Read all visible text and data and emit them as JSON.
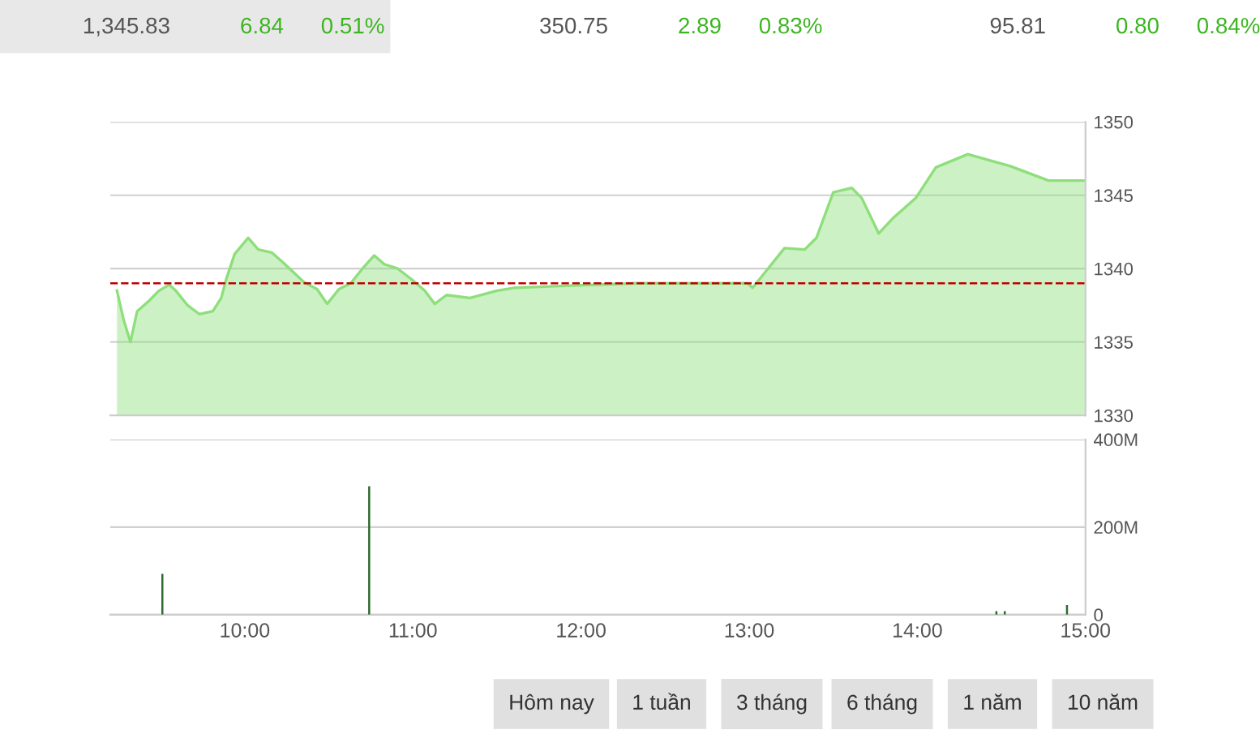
{
  "chart_data": [
    {
      "type": "area",
      "x": [
        9.24,
        9.28,
        9.32,
        9.36,
        9.43,
        9.49,
        9.55,
        9.59,
        9.66,
        9.73,
        9.81,
        9.86,
        9.89,
        9.94,
        10.02,
        10.08,
        10.16,
        10.23,
        10.35,
        10.43,
        10.49,
        10.56,
        10.63,
        10.7,
        10.77,
        10.83,
        10.91,
        11.0,
        11.07,
        11.13,
        11.2,
        11.34,
        11.5,
        11.61,
        11.84,
        12.32,
        12.99,
        13.02,
        13.07,
        13.21,
        13.33,
        13.4,
        13.5,
        13.61,
        13.67,
        13.77,
        13.86,
        13.99,
        14.11,
        14.3,
        14.55,
        14.78,
        15.0
      ],
      "series": [
        {
          "color": "#8edf7c",
          "values": [
            1338.5,
            1336.5,
            1335.0,
            1337.1,
            1337.8,
            1338.5,
            1338.9,
            1338.5,
            1337.5,
            1336.9,
            1337.1,
            1338.0,
            1339.3,
            1341.0,
            1342.1,
            1341.3,
            1341.1,
            1340.4,
            1339.1,
            1338.6,
            1337.6,
            1338.6,
            1339.0,
            1340.0,
            1340.9,
            1340.3,
            1340.0,
            1339.2,
            1338.5,
            1337.6,
            1338.2,
            1338.0,
            1338.5,
            1338.7,
            1338.8,
            1339.0,
            1339.0,
            1338.7,
            1339.4,
            1341.4,
            1341.3,
            1342.1,
            1345.2,
            1345.5,
            1344.8,
            1342.4,
            1343.5,
            1344.8,
            1346.9,
            1347.8,
            1347.0,
            1346.0,
            1346.0
          ]
        }
      ],
      "xlim": [
        9.2,
        15.0
      ],
      "ylim": [
        1330,
        1350
      ],
      "yticks": [
        1330,
        1335,
        1340,
        1345,
        1350
      ],
      "grid": "y",
      "tick_labels": "y",
      "ref_lines": [
        {
          "axis": "y",
          "value": 1339.0,
          "color": "#c00000",
          "line_style": "dashed"
        }
      ],
      "annotations": [
        "1,345.83",
        "6.84",
        "0.51%",
        "350.75",
        "2.89",
        "0.83%",
        "95.81",
        "0.80",
        "0.84%"
      ]
    },
    {
      "type": "bar",
      "x": [
        9.51,
        10.74,
        14.47,
        14.52,
        14.89
      ],
      "series": [
        {
          "color": "#2e6b2e",
          "values": [
            93,
            293,
            8,
            8,
            22
          ]
        }
      ],
      "xlim": [
        9.2,
        15.0
      ],
      "xticks": [
        {
          "value": 10,
          "label": "10:00"
        },
        {
          "value": 11,
          "label": "11:00"
        },
        {
          "value": 12,
          "label": "12:00"
        },
        {
          "value": 13,
          "label": "13:00"
        },
        {
          "value": 14,
          "label": "14:00"
        },
        {
          "value": 15,
          "label": "15:00"
        }
      ],
      "ylim": [
        0,
        400
      ],
      "yticks": [
        0,
        {
          "value": 200,
          "label": "200M"
        },
        {
          "value": 400,
          "label": "400M"
        }
      ],
      "grid": "y",
      "annotations": [
        "Hôm nay",
        "1 tuần",
        "3 tháng",
        "6 tháng",
        "1 năm",
        "10 năm"
      ]
    }
  ]
}
